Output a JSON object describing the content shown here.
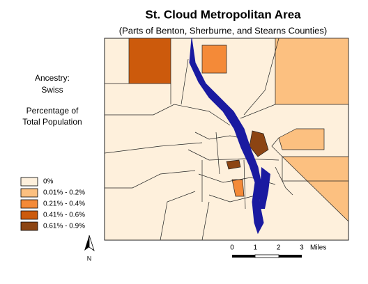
{
  "title": "St. Cloud Metropolitan Area",
  "subtitle": "(Parts of Benton, Sherburne, and Stearns Counties)",
  "side_labels": [
    "Ancestry:",
    "Swiss",
    "Percentage of",
    "Total Population"
  ],
  "legend": {
    "items": [
      {
        "label": "0%",
        "color": "#fef0dc"
      },
      {
        "label": "0.01% - 0.2%",
        "color": "#fcc080"
      },
      {
        "label": "0.21% - 0.4%",
        "color": "#f48a38"
      },
      {
        "label": "0.41% - 0.6%",
        "color": "#cc5a0c"
      },
      {
        "label": "0.61% - 0.9%",
        "color": "#8c4412"
      }
    ]
  },
  "scale_bar": {
    "labels": [
      "0",
      "1",
      "2",
      "3"
    ],
    "unit": "Miles"
  },
  "north_label": "N"
}
